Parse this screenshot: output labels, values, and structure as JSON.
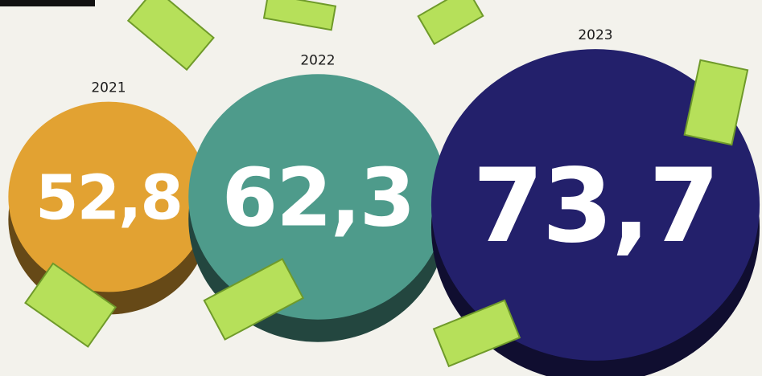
{
  "chart_data": {
    "type": "bubble",
    "categories": [
      "2021",
      "2022",
      "2023"
    ],
    "values": [
      52.8,
      62.3,
      73.7
    ],
    "value_labels": [
      "52,8",
      "62,3",
      "73,7"
    ],
    "colors": [
      "#e2a232",
      "#4e9b8b",
      "#23206b"
    ]
  }
}
